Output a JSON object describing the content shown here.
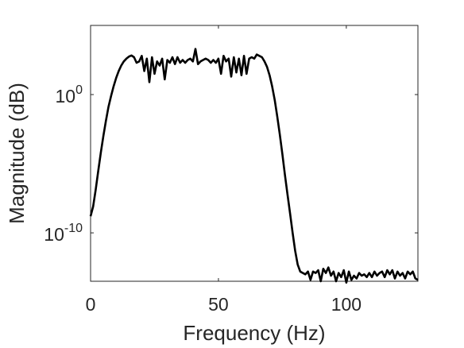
{
  "chart_data": {
    "type": "line",
    "title": "",
    "xlabel": "Frequency (Hz)",
    "ylabel": "Magnitude (dB)",
    "xlim": [
      0,
      128
    ],
    "ylim": [
      -13.5,
      5
    ],
    "yscale": "log",
    "xticks": [
      {
        "value": 0,
        "label": "0"
      },
      {
        "value": 50,
        "label": "50"
      },
      {
        "value": 100,
        "label": "100"
      }
    ],
    "yticks": [
      {
        "value": 0,
        "base": "10",
        "exp": "0"
      },
      {
        "value": -10,
        "base": "10",
        "exp": "-10"
      }
    ],
    "grid": false,
    "line_color": "#000000",
    "series": [
      {
        "x": [
          0,
          1,
          2,
          3,
          4,
          5,
          6,
          7,
          8,
          9,
          10,
          11,
          12,
          13,
          14,
          15,
          16,
          17,
          18,
          19,
          20,
          21,
          22,
          23,
          24,
          25,
          26,
          27,
          28,
          29,
          30,
          31,
          32,
          33,
          34,
          35,
          36,
          37,
          38,
          39,
          40,
          41,
          42,
          43,
          44,
          45,
          46,
          47,
          48,
          49,
          50,
          51,
          52,
          53,
          54,
          55,
          56,
          57,
          58,
          59,
          60,
          61,
          62,
          63,
          64,
          65,
          66,
          67,
          68,
          69,
          70,
          71,
          72,
          73,
          74,
          75,
          76,
          77,
          78,
          79,
          80,
          81,
          82,
          83,
          84,
          85,
          86,
          87,
          88,
          89,
          90,
          91,
          92,
          93,
          94,
          95,
          96,
          97,
          98,
          99,
          100,
          101,
          102,
          103,
          104,
          105,
          106,
          107,
          108,
          109,
          110,
          111,
          112,
          113,
          114,
          115,
          116,
          117,
          118,
          119,
          120,
          121,
          122,
          123,
          124,
          125,
          126,
          127,
          128
        ],
        "y": [
          -8.8,
          -8.1,
          -6.9,
          -5.5,
          -4.2,
          -3.0,
          -1.9,
          -0.9,
          -0.1,
          0.6,
          1.2,
          1.7,
          2.1,
          2.4,
          2.6,
          2.75,
          2.83,
          2.7,
          2.3,
          2.4,
          2.8,
          1.7,
          2.6,
          0.9,
          2.7,
          1.5,
          2.4,
          2.1,
          2.6,
          1.1,
          2.5,
          2.3,
          2.7,
          2.2,
          2.7,
          2.3,
          2.5,
          2.3,
          2.5,
          2.6,
          2.4,
          3.3,
          2.2,
          2.4,
          2.5,
          2.6,
          2.5,
          2.3,
          2.5,
          2.3,
          2.6,
          1.5,
          2.8,
          2.4,
          2.6,
          1.3,
          2.7,
          1.6,
          2.6,
          1.4,
          2.8,
          1.5,
          2.6,
          2.7,
          2.6,
          2.9,
          2.8,
          2.7,
          2.4,
          2.0,
          1.4,
          0.6,
          -0.4,
          -1.6,
          -2.9,
          -4.3,
          -5.8,
          -7.2,
          -8.6,
          -10.0,
          -11.3,
          -12.3,
          -12.8,
          -12.9,
          -13.0,
          -12.8,
          -13.4,
          -12.8,
          -12.9,
          -12.7,
          -13.5,
          -12.6,
          -12.9,
          -12.5,
          -13.1,
          -12.8,
          -13.5,
          -12.9,
          -13.2,
          -12.7,
          -13.6,
          -12.8,
          -13.4,
          -13.1,
          -13.3,
          -12.9,
          -13.1,
          -13.0,
          -13.2,
          -12.9,
          -13.2,
          -12.8,
          -13.1,
          -12.9,
          -12.8,
          -13.2,
          -12.7,
          -13.0,
          -12.7,
          -13.3,
          -12.8,
          -13.1,
          -12.9,
          -13.3,
          -12.8,
          -13.0,
          -12.8,
          -13.3,
          -13.4
        ]
      }
    ]
  }
}
